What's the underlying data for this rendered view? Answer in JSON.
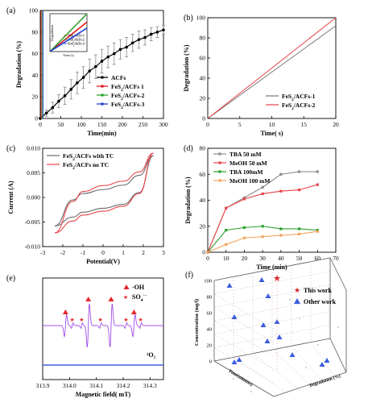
{
  "chart_data": [
    {
      "panel": "(a)",
      "type": "line",
      "xlabel": "Time(min)",
      "ylabel": "Degradation (%)",
      "xlim": [
        0,
        300
      ],
      "ylim": [
        0,
        100
      ],
      "xticks": [
        0,
        50,
        100,
        150,
        200,
        250,
        300
      ],
      "yticks": [
        0,
        20,
        40,
        60,
        80,
        100
      ],
      "legend": "bottom-right",
      "series": [
        {
          "name": "ACFs",
          "color": "#000000",
          "marker": "circle",
          "x": [
            0,
            15,
            30,
            45,
            60,
            75,
            90,
            105,
            120,
            135,
            150,
            165,
            180,
            195,
            210,
            225,
            240,
            255,
            270,
            285,
            300
          ],
          "y": [
            0,
            5,
            10,
            16,
            21,
            27,
            33,
            38,
            44,
            48,
            53,
            57,
            60,
            64,
            66,
            70,
            73,
            75,
            78,
            80,
            82
          ],
          "err": [
            1,
            3,
            5,
            6,
            8,
            9,
            10,
            10,
            11,
            11,
            11,
            10,
            10,
            9,
            9,
            8,
            8,
            7,
            6,
            5,
            4
          ]
        },
        {
          "name": "FeS2/ACFs 1",
          "color": "#e41a1c"
        },
        {
          "name": "FeS2/ACFs-2",
          "color": "#2ca02c"
        },
        {
          "name": "FeS2/ACFs-3",
          "color": "#1f3fd6"
        }
      ],
      "inset": {
        "ylabel": "Degradation",
        "xlabel": "Time (s)",
        "series": [
          {
            "name": "FeS2/ACFs-1",
            "color": "#e41a1c",
            "x": [
              0,
              1
            ],
            "y": [
              0,
              0.78
            ]
          },
          {
            "name": "FeS2/ACFs-2",
            "color": "#2ca02c",
            "x": [
              0,
              1
            ],
            "y": [
              0,
              1.0
            ]
          },
          {
            "name": "FeS2/ACFs-3",
            "color": "#1f3fd6",
            "x": [
              0,
              1
            ],
            "y": [
              0,
              0.62
            ]
          }
        ]
      }
    },
    {
      "panel": "(b)",
      "type": "line",
      "xlabel": "Time( s)",
      "ylabel": "Degradation (%)",
      "xlim": [
        0,
        20
      ],
      "ylim": [
        0,
        100
      ],
      "xticks": [
        0,
        5,
        10,
        15,
        20
      ],
      "yticks": [
        0,
        20,
        40,
        60,
        80,
        100
      ],
      "legend": "bottom-right",
      "series": [
        {
          "name": "FeS2/ACFs-1",
          "color": "#777777",
          "x": [
            0,
            20
          ],
          "y": [
            0,
            92
          ]
        },
        {
          "name": "FeS2/ACFs-2",
          "color": "#e8434a",
          "x": [
            0,
            20
          ],
          "y": [
            0,
            100
          ]
        }
      ]
    },
    {
      "panel": "(c)",
      "type": "line",
      "xlabel": "Potential(V)",
      "ylabel": "Current (A)",
      "xlim": [
        -3,
        3
      ],
      "ylim": [
        -0.01,
        0.01
      ],
      "xticks": [
        -3,
        -2,
        -1,
        0,
        1,
        2,
        3
      ],
      "ytick_labels": [
        "0.010",
        "0.005",
        "0.000",
        "-0.005",
        "-0.010"
      ],
      "yticks": [
        0.01,
        0.005,
        0.0,
        -0.005,
        -0.01
      ],
      "legend": "top-left",
      "series": [
        {
          "name": "FeS2/ACFs  with TC",
          "color": "#6b6b6b",
          "upper": [
            [
              -2.4,
              -0.0058
            ],
            [
              -1.5,
              -0.0005
            ],
            [
              -1,
              0.0008
            ],
            [
              0,
              0.0016
            ],
            [
              1,
              0.0025
            ],
            [
              1.8,
              0.0045
            ],
            [
              2.5,
              0.0085
            ]
          ],
          "lower": [
            [
              -2.4,
              -0.0058
            ],
            [
              -1.5,
              -0.004
            ],
            [
              -1,
              -0.003
            ],
            [
              0,
              -0.0022
            ],
            [
              1,
              -0.0014
            ],
            [
              1.8,
              0.001
            ],
            [
              2.5,
              0.0085
            ]
          ]
        },
        {
          "name": "FeS2/ACFs  no TC",
          "color": "#e8434a",
          "upper": [
            [
              -2.4,
              -0.0072
            ],
            [
              -1.5,
              -0.0008
            ],
            [
              -1,
              0.0012
            ],
            [
              0,
              0.0024
            ],
            [
              1,
              0.0033
            ],
            [
              1.8,
              0.0052
            ],
            [
              2.5,
              0.009
            ]
          ],
          "lower": [
            [
              -2.4,
              -0.0072
            ],
            [
              -1.5,
              -0.0048
            ],
            [
              -1,
              -0.0036
            ],
            [
              0,
              -0.0028
            ],
            [
              1,
              -0.0018
            ],
            [
              1.8,
              0.0008
            ],
            [
              2.5,
              0.009
            ]
          ]
        }
      ]
    },
    {
      "panel": "(d)",
      "type": "line",
      "xlabel": "Time (min)",
      "ylabel": "Degradation (%)",
      "xlim": [
        0,
        70
      ],
      "ylim": [
        0,
        80
      ],
      "xticks": [
        0,
        10,
        20,
        30,
        40,
        50,
        60,
        70
      ],
      "yticks": [
        0,
        20,
        40,
        60,
        80
      ],
      "legend": "top-left",
      "series": [
        {
          "name": "TBA 50 mM",
          "color": "#8c8c8c",
          "x": [
            0,
            10,
            20,
            30,
            40,
            50,
            60
          ],
          "y": [
            0,
            34,
            42,
            50,
            60,
            62,
            62
          ]
        },
        {
          "name": "MeOH 50 mM",
          "color": "#e8434a",
          "x": [
            0,
            10,
            20,
            30,
            40,
            50,
            60
          ],
          "y": [
            0,
            34,
            41,
            45,
            47,
            48,
            52
          ]
        },
        {
          "name": "TBA 100mM",
          "color": "#2ca02c",
          "x": [
            0,
            10,
            20,
            30,
            40,
            50,
            60
          ],
          "y": [
            0,
            17,
            19,
            20,
            18,
            18,
            17
          ]
        },
        {
          "name": "MeOH 100 mM",
          "color": "#f4a460",
          "x": [
            0,
            10,
            20,
            30,
            40,
            50,
            60
          ],
          "y": [
            0,
            6,
            11,
            12,
            13,
            14,
            16
          ]
        }
      ]
    },
    {
      "panel": "(e)",
      "type": "line",
      "xlabel": "Magnetic field( mT)",
      "xlim": [
        313.9,
        314.35
      ],
      "xticks": [
        313.9,
        314.0,
        314.1,
        314.2,
        314.3
      ],
      "xtick_labels": [
        "313.9",
        "314.0",
        "314.1",
        "314.2",
        "314.3"
      ],
      "legend": "top-right",
      "legend_items": [
        {
          "label": "·OH",
          "symbol": "triangle",
          "color": "#e8262b"
        },
        {
          "label": "SO4·−",
          "symbol": "star",
          "color": "#e8262b"
        }
      ],
      "annotations": [
        "¹O₂"
      ],
      "series": [
        {
          "name": "·OH / SO4·−",
          "color": "#a24ce8"
        },
        {
          "name": "¹O₂",
          "color": "#1f3fd6"
        }
      ],
      "oh_peaks": [
        313.985,
        314.07,
        314.155,
        314.24
      ],
      "so4_peaks": [
        314.01,
        314.045,
        314.115,
        314.21,
        314.265
      ]
    },
    {
      "panel": "(f)",
      "type": "scatter",
      "zlabel": "Concentration (mg/l)",
      "xlabel": "Time(minutes)",
      "ylabel": "Degradation (%)",
      "zticks": [
        0,
        20,
        40,
        60,
        80,
        100
      ],
      "legend": "top-right",
      "legend_items": [
        {
          "label": "This work",
          "symbol": "star",
          "color": "#d81e1e"
        },
        {
          "label": "Other work",
          "symbol": "triangle",
          "color": "#3a5be0"
        }
      ]
    }
  ]
}
